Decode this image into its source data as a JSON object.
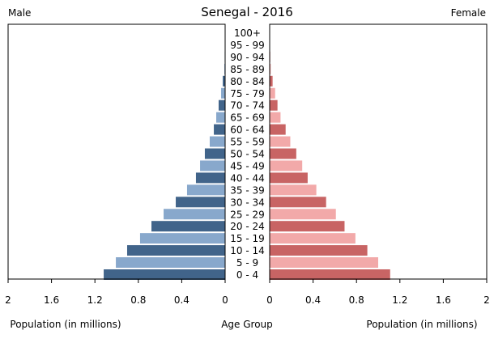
{
  "chart_data": {
    "type": "bar",
    "orientation": "horizontal",
    "subtype": "population-pyramid",
    "title": "Senegal - 2016",
    "left_label": "Male",
    "right_label": "Female",
    "xlabel_left": "Population (in millions)",
    "xlabel_center": "Age Group",
    "xlabel_right": "Population (in millions)",
    "xlim": [
      0,
      2
    ],
    "ticks": [
      0,
      0.4,
      0.8,
      1.2,
      1.6,
      2
    ],
    "tick_labels": [
      "0",
      "0.4",
      "0.8",
      "1.2",
      "1.6",
      "2"
    ],
    "grid": false,
    "categories": [
      "0 - 4",
      "5 - 9",
      "10 - 14",
      "15 - 19",
      "20 - 24",
      "25 - 29",
      "30 - 34",
      "35 - 39",
      "40 - 44",
      "45 - 49",
      "50 - 54",
      "55 - 59",
      "60 - 64",
      "65 - 69",
      "70 - 74",
      "75 - 79",
      "80 - 84",
      "85 - 89",
      "90 - 94",
      "95 - 99",
      "100+"
    ],
    "series": [
      {
        "name": "Male",
        "values": [
          1.119,
          1.007,
          0.903,
          0.784,
          0.679,
          0.567,
          0.455,
          0.351,
          0.269,
          0.231,
          0.187,
          0.142,
          0.104,
          0.082,
          0.06,
          0.037,
          0.022,
          0.007,
          0.004,
          0.002,
          0.001
        ]
      },
      {
        "name": "Female",
        "values": [
          1.11,
          1.0,
          0.9,
          0.79,
          0.69,
          0.61,
          0.52,
          0.43,
          0.35,
          0.3,
          0.245,
          0.19,
          0.147,
          0.1,
          0.072,
          0.05,
          0.027,
          0.01,
          0.005,
          0.003,
          0.002
        ]
      }
    ],
    "colors": {
      "male_dark": "#41648a",
      "male_light": "#88a8cc",
      "female_dark": "#c86464",
      "female_light": "#f2a9a9"
    }
  }
}
